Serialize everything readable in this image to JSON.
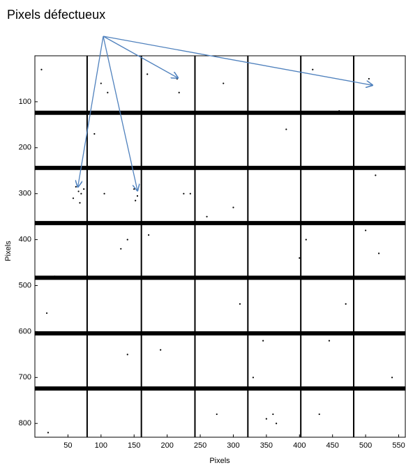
{
  "chart_data": {
    "type": "image",
    "annotation": "Pixels défectueux",
    "annotation_targets": {
      "x": [
        65,
        155,
        216,
        510
      ],
      "y": [
        285,
        293,
        48,
        64
      ]
    },
    "arrow_color": "#4f81bd",
    "xlabel": "Pixels",
    "ylabel": "Pixels",
    "xlim": [
      0,
      560
    ],
    "ylim": [
      0,
      830
    ],
    "y_inverted": true,
    "xticks": [
      50,
      100,
      150,
      200,
      250,
      300,
      350,
      400,
      450,
      500,
      550
    ],
    "yticks": [
      100,
      200,
      300,
      400,
      500,
      600,
      700,
      800
    ],
    "module_rows": [
      124,
      244,
      364,
      483,
      604,
      724
    ],
    "module_columns": [
      79,
      161,
      242,
      322,
      402,
      482
    ],
    "color": "#000000",
    "defects": {
      "x": [
        10,
        18,
        62,
        66,
        70,
        58,
        74,
        68,
        100,
        110,
        105,
        140,
        150,
        155,
        152,
        130,
        170,
        172,
        215,
        218,
        225,
        260,
        285,
        300,
        310,
        330,
        345,
        360,
        365,
        380,
        400,
        410,
        430,
        445,
        460,
        500,
        505,
        515,
        540,
        20,
        30,
        90,
        140,
        190,
        235,
        275,
        350,
        420,
        470,
        520
      ],
      "y": [
        30,
        560,
        285,
        295,
        300,
        310,
        290,
        320,
        60,
        80,
        300,
        400,
        290,
        305,
        315,
        420,
        40,
        390,
        50,
        80,
        300,
        350,
        60,
        330,
        540,
        700,
        620,
        780,
        800,
        160,
        440,
        400,
        780,
        620,
        120,
        380,
        50,
        260,
        700,
        820,
        480,
        170,
        650,
        640,
        300,
        780,
        790,
        30,
        540,
        430
      ]
    }
  }
}
